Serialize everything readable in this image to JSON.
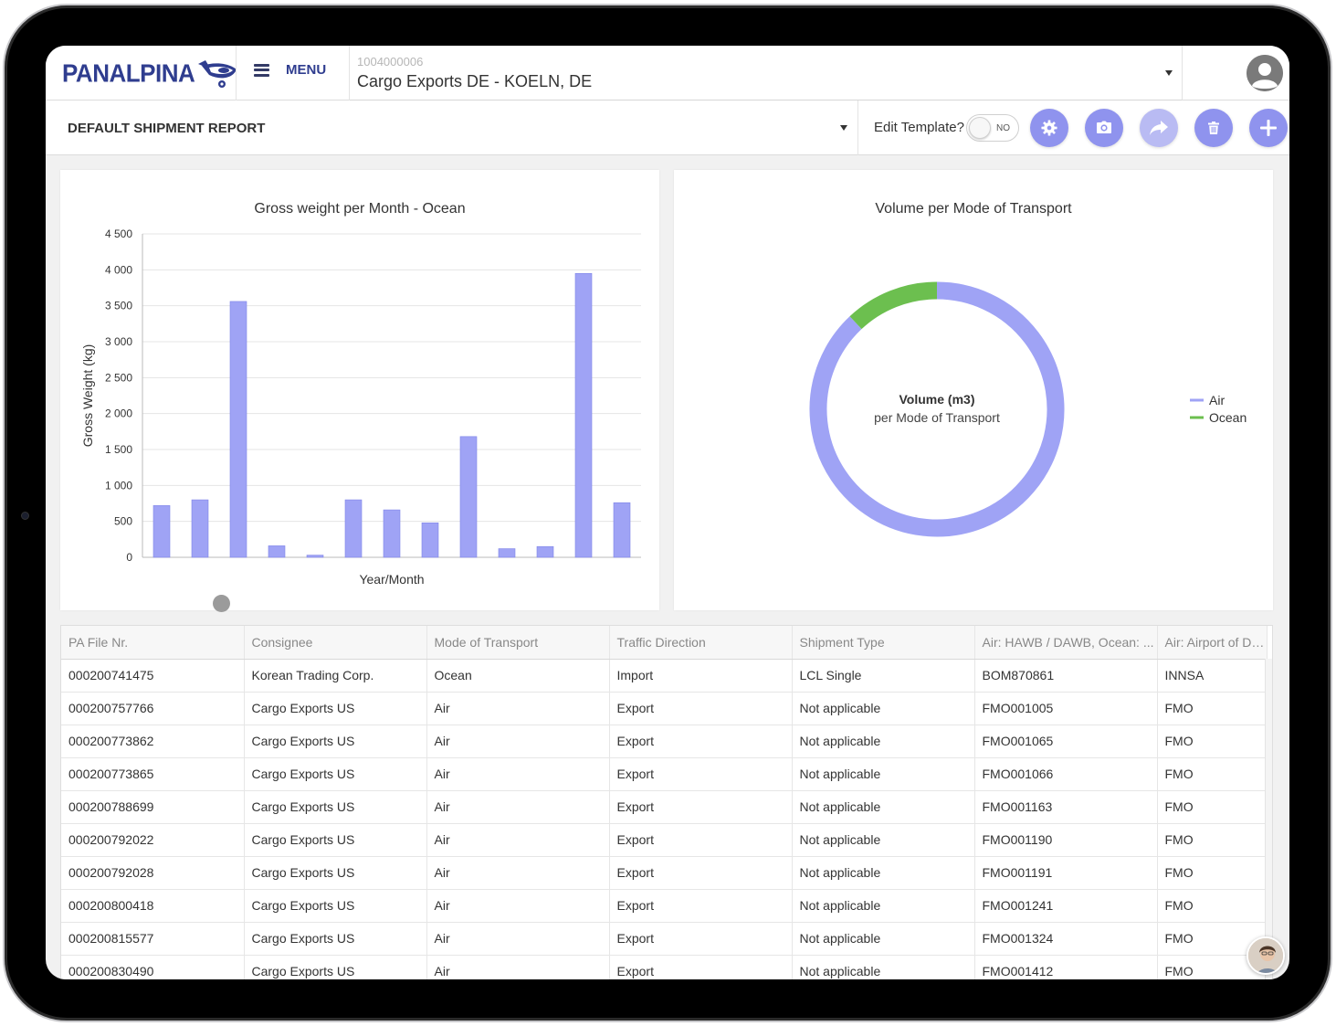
{
  "header": {
    "logo_text": "PANALPINA",
    "menu_label": "MENU",
    "account_id": "1004000006",
    "account_name": "Cargo Exports DE - KOELN, DE",
    "avatar_icon": "user-avatar-icon"
  },
  "toolbar": {
    "report_name": "DEFAULT SHIPMENT REPORT",
    "edit_template_label": "Edit Template?",
    "toggle_label": "NO",
    "buttons": [
      "gear-icon",
      "camera-icon",
      "share-icon",
      "trash-icon",
      "plus-icon"
    ]
  },
  "colors": {
    "accent": "#8f93ee",
    "brand": "#2f3d8f",
    "air": "#9fa3f5",
    "ocean": "#6cbf4f"
  },
  "chart_data": [
    {
      "type": "bar",
      "title": "Gross weight per Month - Ocean",
      "xlabel": "Year/Month",
      "ylabel": "Gross Weight (kg)",
      "ylim": [
        0,
        4500
      ],
      "yticks": [
        "4 500",
        "4 000",
        "3 500",
        "3 000",
        "2 500",
        "2 000",
        "1 500",
        "1 000",
        "500",
        "0"
      ],
      "values": [
        720,
        800,
        3560,
        160,
        30,
        800,
        660,
        480,
        1680,
        120,
        150,
        3950,
        760
      ]
    },
    {
      "type": "pie",
      "title": "Volume per Mode of Transport",
      "center_title": "Volume (m3)",
      "center_subtitle": "per Mode of Transport",
      "legend_position": "right",
      "series": [
        {
          "name": "Air",
          "value": 88
        },
        {
          "name": "Ocean",
          "value": 12
        }
      ]
    }
  ],
  "table": {
    "columns": [
      "PA File Nr.",
      "Consignee",
      "Mode of Transport",
      "Traffic Direction",
      "Shipment Type",
      "Air: HAWB / DAWB, Ocean: ...",
      "Air: Airport of Depa"
    ],
    "rows": [
      [
        "000200741475",
        "Korean Trading Corp.",
        "Ocean",
        "Import",
        "LCL Single",
        "BOM870861",
        "INNSA"
      ],
      [
        "000200757766",
        "Cargo Exports US",
        "Air",
        "Export",
        "Not applicable",
        "FMO001005",
        "FMO"
      ],
      [
        "000200773862",
        "Cargo Exports US",
        "Air",
        "Export",
        "Not applicable",
        "FMO001065",
        "FMO"
      ],
      [
        "000200773865",
        "Cargo Exports US",
        "Air",
        "Export",
        "Not applicable",
        "FMO001066",
        "FMO"
      ],
      [
        "000200788699",
        "Cargo Exports US",
        "Air",
        "Export",
        "Not applicable",
        "FMO001163",
        "FMO"
      ],
      [
        "000200792022",
        "Cargo Exports US",
        "Air",
        "Export",
        "Not applicable",
        "FMO001190",
        "FMO"
      ],
      [
        "000200792028",
        "Cargo Exports US",
        "Air",
        "Export",
        "Not applicable",
        "FMO001191",
        "FMO"
      ],
      [
        "000200800418",
        "Cargo Exports US",
        "Air",
        "Export",
        "Not applicable",
        "FMO001241",
        "FMO"
      ],
      [
        "000200815577",
        "Cargo Exports US",
        "Air",
        "Export",
        "Not applicable",
        "FMO001324",
        "FMO"
      ],
      [
        "000200830490",
        "Cargo Exports US",
        "Air",
        "Export",
        "Not applicable",
        "FMO001412",
        "FMO"
      ]
    ]
  }
}
